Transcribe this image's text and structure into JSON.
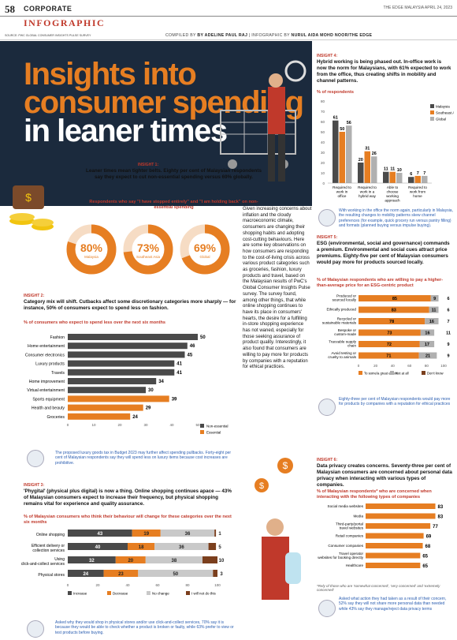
{
  "header": {
    "page_number": "58",
    "section": "CORPORATE",
    "publication": "THE EDGE MALAYSIA APRIL 24, 2023",
    "infographic_label": "INFOGRAPHIC",
    "source": "SOURCE: PWC GLOBAL CONSUMER INSIGHTS PULSE SURVEY",
    "compiled_prefix": "COMPILED BY",
    "compiled_name": "BY ADELINE PAUL RAJ",
    "infographic_prefix": "INFOGRAPHIC BY",
    "infographic_name": "NURUL AIDA MOHD NOOR/THE EDGE"
  },
  "title": {
    "line1": "Insights into",
    "line2": "consumer spending",
    "line3": "in leaner times"
  },
  "intro": "Given increasing concerns about inflation and the cloudy macroeconomic climate, consumers are changing their shopping habits and adopting cost-cutting behaviours. Here are some key observations on how consumers are responding to the cost-of-living crisis across various product categories such as groceries, fashion, luxury products and travel, based on the Malaysian results of PwC's Global Consumer Insights Pulse survey. The survey found, among other things, that while online shopping continues to have its place in consumers' hearts, the desire for a fulfilling in-store shopping experience has not waned, especially for those seeking assurance of product quality. Interestingly, it also found that consumers are willing to pay more for products by companies with a reputation for ethical practices.",
  "insight1": {
    "label": "INSIGHT 1:",
    "headline": "Leaner times mean tighter belts. Eighty per cent of Malaysian respondents say they expect to cut non-essential spending versus 69% globally.",
    "subtitle": "Respondents who say \"I have stopped entirely\" and \"I am holding back\" on non-essential spending",
    "rings": [
      {
        "value": 80,
        "label": "80%",
        "region": "Malaysia"
      },
      {
        "value": 73,
        "label": "73%",
        "region": "Southeast Asia"
      },
      {
        "value": 69,
        "label": "69%",
        "region": "Global"
      }
    ],
    "colors": {
      "fill": "#e67e22",
      "track": "#f6dcc4"
    }
  },
  "insight2": {
    "label": "INSIGHT 2:",
    "headline": "Category mix will shift. Cutbacks affect some discretionary categories more sharply — for instance, 50% of consumers expect to spend less on fashion.",
    "chart_title": "% of consumers who expect to spend less over the next six months",
    "note": "The proposed luxury goods tax in Budget 2023 may further affect spending pullbacks. Forty-eight per cent of Malaysian respondents say they will spend less on luxury items because cost increases are prohibitive."
  },
  "insight3": {
    "label": "INSIGHT 3:",
    "headline": "'Phygital' (physical plus digital) is now a thing. Online shopping continues apace — 43% of Malaysian consumers expect to increase their frequency, but physical shopping remains vital for experience and quality assurance.",
    "chart_title": "% of Malaysian consumers who think their behaviour will change for these categories over the next six months",
    "note": "Asked why they would shop in physical stores and/or use click-and-collect services, 70% say it is because they would be able to check whether a product is broken or faulty, while 63% prefer to view or test products before buying."
  },
  "insight4": {
    "label": "INSIGHT 4:",
    "headline": "Hybrid working is being phased out. In-office work is now the norm for Malaysians, with 61% expected to work from the office, thus creating shifts in mobility and channel patterns.",
    "chart_title": "% of respondents",
    "note": "With working in the office the norm again, particularly in Malaysia, the resulting changes to mobility patterns skew channel preferences (for example, quick grocery run versus pantry filling) and formats (planned buying versus impulse buying)."
  },
  "insight5": {
    "label": "INSIGHT 5:",
    "headline": "ESG (environmental, social and governance) commands a premium. Environmental and social cues attract price premiums. Eighty-five per cent of Malaysian consumers would pay more for products sourced locally.",
    "chart_title": "% of Malaysian respondents who are willing to pay a higher-than-average price for an ESG-centric product",
    "note": "Eighty-three per cent of Malaysian respondents would pay more for products by companies with a reputation for ethical practices"
  },
  "insight6": {
    "label": "INSIGHT 6:",
    "headline": "Data privacy creates concerns. Seventy-three per cent of Malaysian consumers are concerned about personal data privacy when interacting with various types of companies.",
    "chart_title": "% of Malaysian respondents* who are concerned when interacting with the following types of companies",
    "footnote": "*Rely of those who are 'somewhat concerned', 'very concerned' and 'extremely concerned'",
    "note": "Asked what action they had taken as a result of their concern, 52% say they will not share more personal data than needed while 43% say they manage/reject data privacy terms"
  },
  "chart_data": [
    {
      "id": "insight1",
      "type": "pie",
      "title": "Respondents who say \"I have stopped entirely\" and \"I am holding back\" on non-essential spending",
      "categories": [
        "Malaysia",
        "Southeast Asia",
        "Global"
      ],
      "values": [
        80,
        73,
        69
      ],
      "unit": "%"
    },
    {
      "id": "insight2",
      "type": "bar",
      "orientation": "horizontal",
      "title": "% of consumers who expect to spend less over the next six months",
      "categories": [
        "Fashion",
        "Home entertainment",
        "Consumer electronics",
        "Luxury products",
        "Travels",
        "Home improvement",
        "Virtual entertainment",
        "Sports equipment",
        "Health and beauty",
        "Groceries"
      ],
      "values": [
        50,
        46,
        45,
        41,
        41,
        34,
        30,
        39,
        29,
        24
      ],
      "series_type": [
        "Non-essential",
        "Non-essential",
        "Non-essential",
        "Non-essential",
        "Non-essential",
        "Non-essential",
        "Non-essential",
        "Essential",
        "Essential",
        "Essential"
      ],
      "legend": [
        {
          "name": "Non-essential",
          "color": "#4a4a4a"
        },
        {
          "name": "Essential",
          "color": "#e67e22"
        }
      ],
      "xticks": [
        0,
        10,
        20,
        30,
        40,
        50
      ],
      "xlim": [
        0,
        50
      ]
    },
    {
      "id": "insight3",
      "type": "bar",
      "orientation": "horizontal",
      "stacked": true,
      "title": "% of Malaysian consumers who think their behaviour will change for these categories over the next six months",
      "categories": [
        "Online shopping",
        "Efficient delivery or collection services",
        "Using click-and-collect services",
        "Physical stores"
      ],
      "series": [
        {
          "name": "Increase",
          "color": "#4a4a4a",
          "values": [
            43,
            40,
            32,
            24
          ]
        },
        {
          "name": "Decrease",
          "color": "#e67e22",
          "values": [
            19,
            18,
            20,
            23
          ]
        },
        {
          "name": "No change",
          "color": "#c9c9c9",
          "values": [
            36,
            36,
            38,
            50
          ]
        },
        {
          "name": "I will not do this",
          "color": "#7b3f1d",
          "values": [
            1,
            5,
            10,
            3
          ]
        }
      ],
      "xticks": [
        0,
        20,
        40,
        60,
        80,
        100
      ],
      "xlim": [
        0,
        100
      ]
    },
    {
      "id": "insight4",
      "type": "bar",
      "title": "% of respondents",
      "categories": [
        "Required to work in office",
        "Required to work in a hybrid way",
        "Able to choose working approach",
        "Required to work from home"
      ],
      "series": [
        {
          "name": "Malaysia",
          "color": "#4a4a4a",
          "values": [
            61,
            20,
            11,
            6
          ]
        },
        {
          "name": "Southeast Asia",
          "color": "#e67e22",
          "values": [
            50,
            31,
            11,
            7
          ]
        },
        {
          "name": "Global",
          "color": "#b0b0b0",
          "values": [
            56,
            26,
            10,
            7
          ]
        }
      ],
      "yticks": [
        0,
        10,
        20,
        30,
        40,
        50,
        60,
        70,
        80
      ],
      "ylim": [
        0,
        80
      ]
    },
    {
      "id": "insight5",
      "type": "bar",
      "orientation": "horizontal",
      "stacked": true,
      "title": "% of Malaysian respondents who are willing to pay a higher-than-average price for an ESG-centric product",
      "categories": [
        "Produced or sourced locally",
        "Ethically produced",
        "Recycled or sustainable materials",
        "Bespoke or custom-made",
        "Traceable supply chain",
        "Avoid testing or cruelty to animals"
      ],
      "series": [
        {
          "name": "To some/a great extent",
          "color": "#e67e22",
          "values": [
            85,
            83,
            78,
            73,
            72,
            71
          ]
        },
        {
          "name": "Not at all",
          "color": "#b0b0b0",
          "values": [
            9,
            11,
            16,
            16,
            17,
            21
          ]
        },
        {
          "name": "Don't know",
          "color": "#7b3f1d",
          "values": [
            6,
            6,
            7,
            11,
            9,
            9
          ]
        }
      ],
      "xticks": [
        0,
        20,
        40,
        60,
        80,
        100
      ],
      "xlim": [
        0,
        100
      ]
    },
    {
      "id": "insight6",
      "type": "bar",
      "orientation": "horizontal",
      "title": "% of Malaysian respondents* who are concerned when interacting with the following types of companies",
      "categories": [
        "Social media websites",
        "Media",
        "Third-party/portal travel websites",
        "Retail companies",
        "Consumer companies",
        "Travel operator websites for booking directly",
        "Healthcare"
      ],
      "values": [
        83,
        83,
        77,
        69,
        68,
        65,
        65
      ],
      "color": "#e67e22",
      "xlim": [
        0,
        90
      ]
    }
  ]
}
